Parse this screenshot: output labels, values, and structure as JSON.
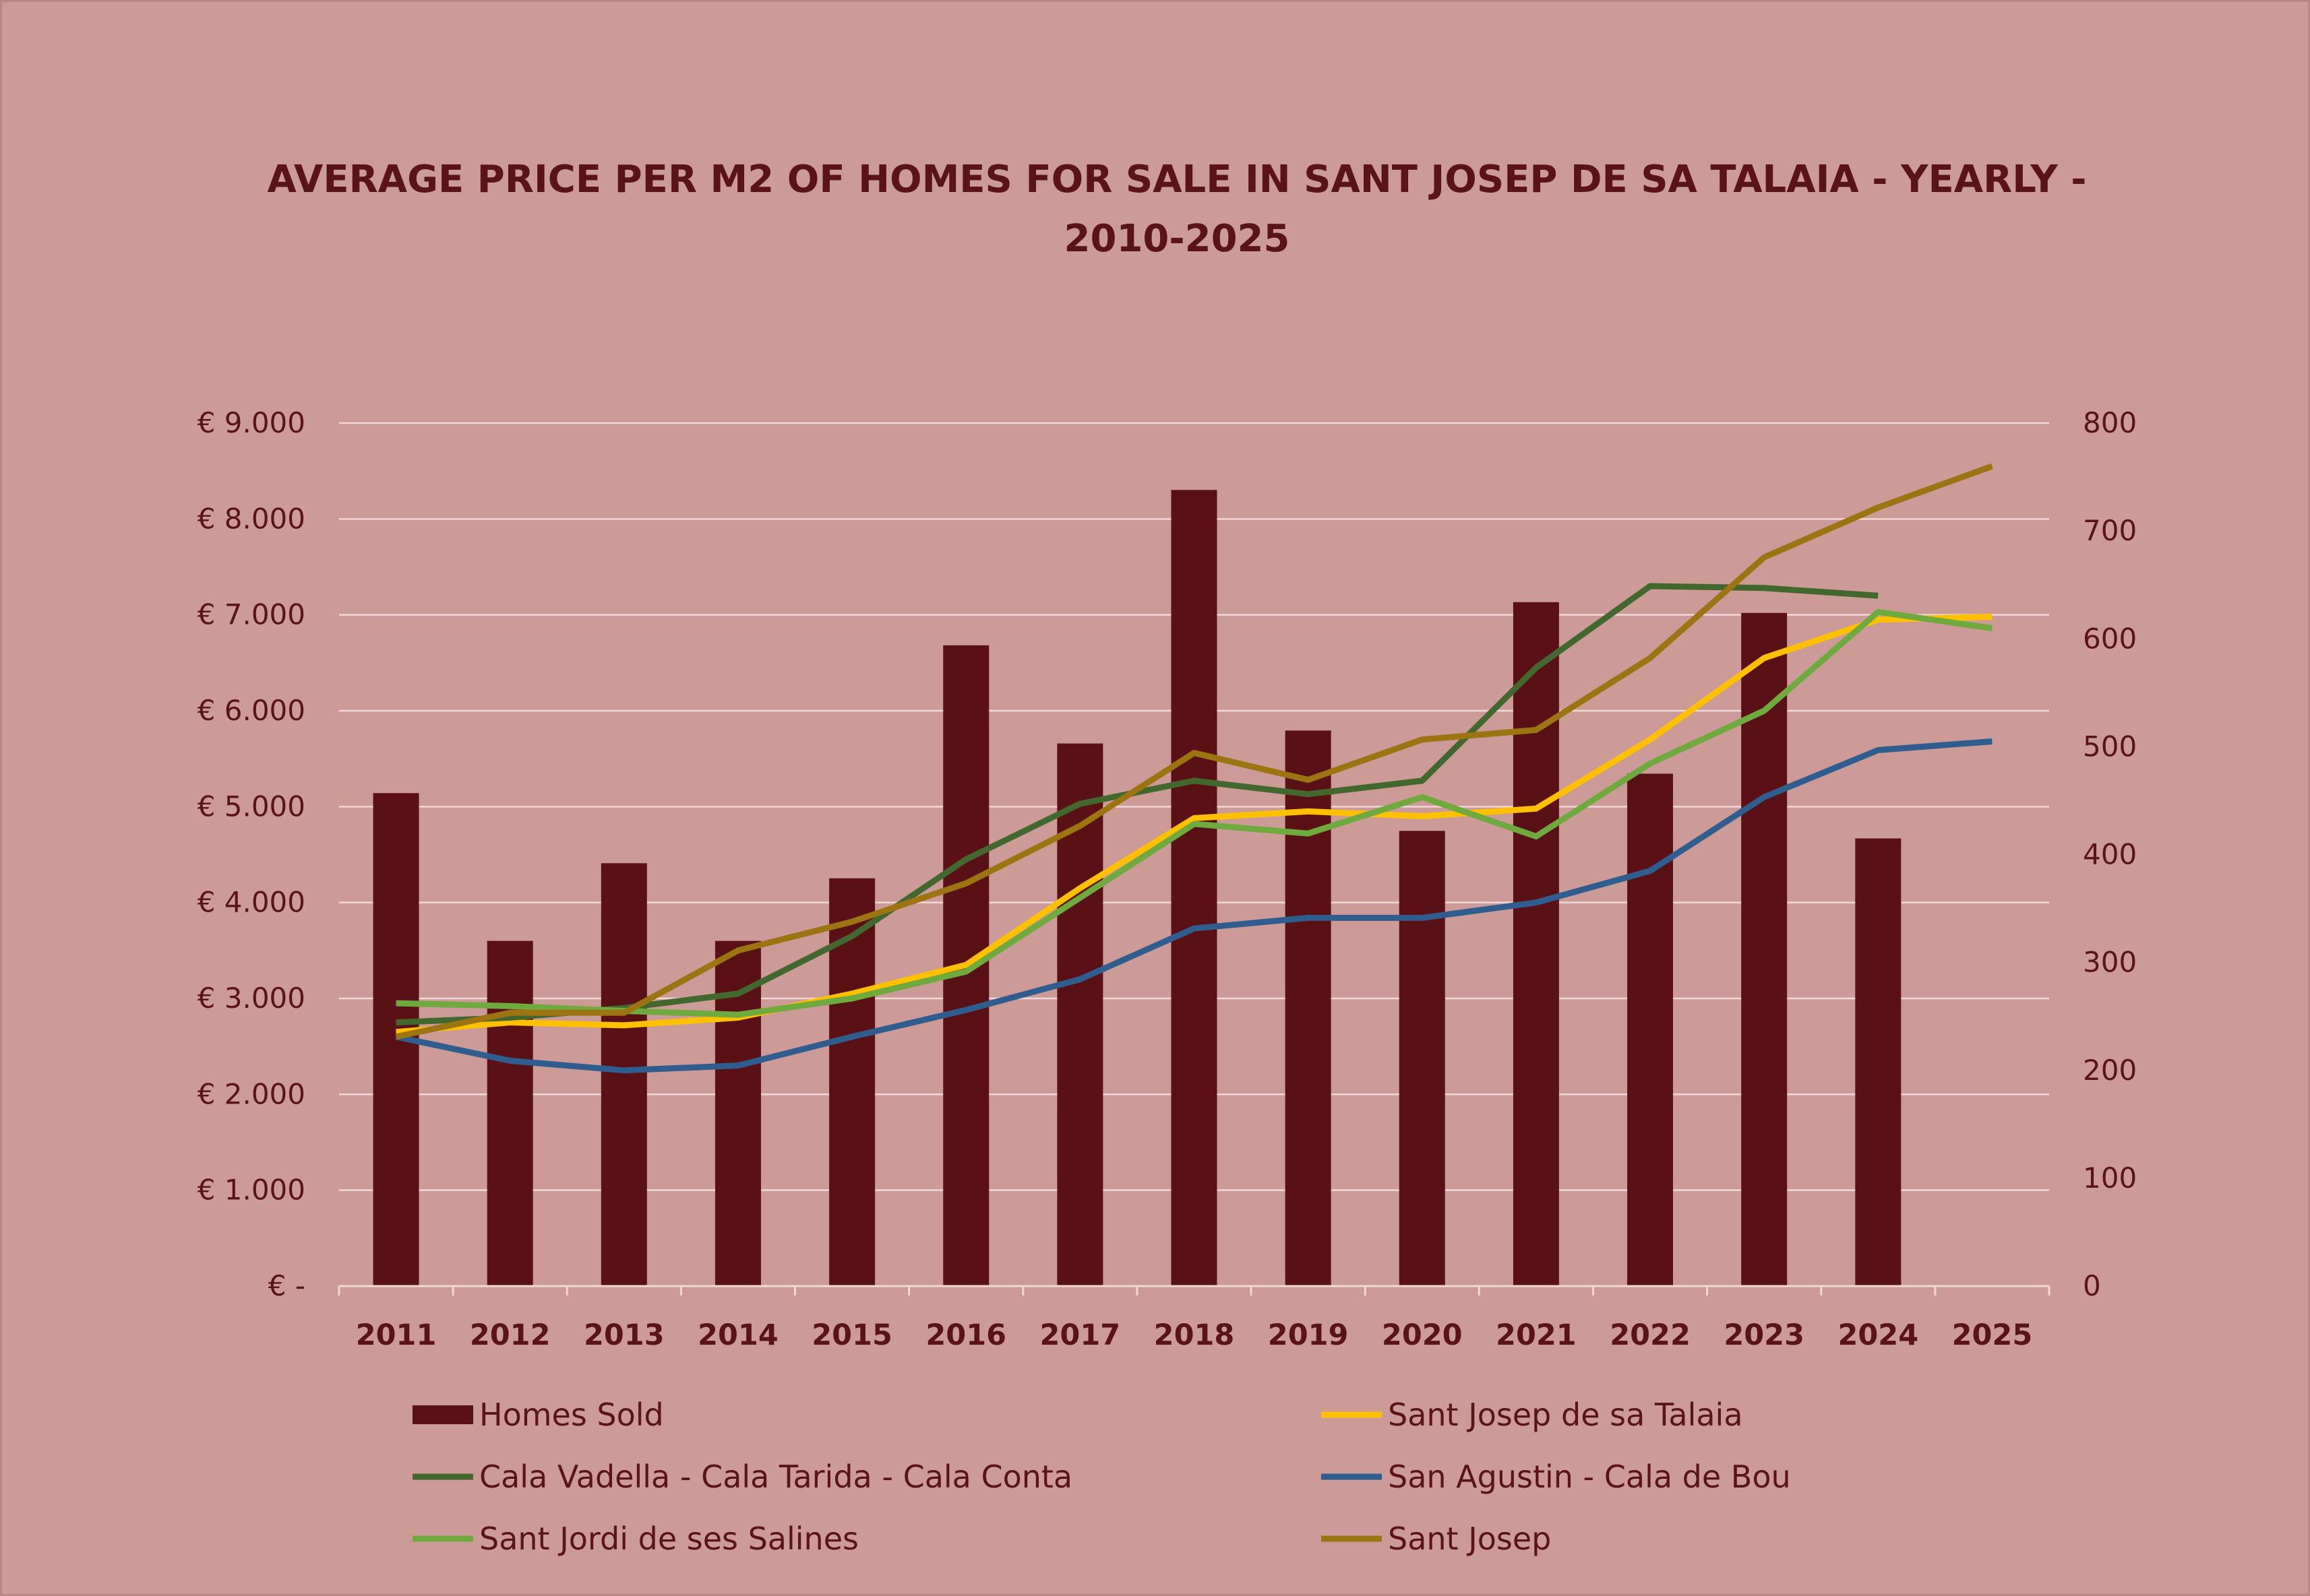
{
  "chart_data": {
    "type": "bar+line",
    "title_lines": [
      "AVERAGE PRICE PER M2 OF HOMES FOR SALE IN SANT JOSEP DE SA TALAIA - YEARLY -",
      "2010-2025"
    ],
    "categories": [
      "2011",
      "2012",
      "2013",
      "2014",
      "2015",
      "2016",
      "2017",
      "2018",
      "2019",
      "2020",
      "2021",
      "2022",
      "2023",
      "2024",
      "2025"
    ],
    "y_left": {
      "min": 0,
      "max": 9000,
      "ticks": [
        0,
        1000,
        2000,
        3000,
        4000,
        5000,
        6000,
        7000,
        8000,
        9000
      ],
      "tick_labels": [
        "€ -",
        "€ 1.000",
        "€ 2.000",
        "€ 3.000",
        "€ 4.000",
        "€ 5.000",
        "€ 6.000",
        "€ 7.000",
        "€ 8.000",
        "€ 9.000"
      ]
    },
    "y_right": {
      "min": 0,
      "max": 800,
      "ticks": [
        0,
        100,
        200,
        300,
        400,
        500,
        600,
        700,
        800
      ],
      "tick_labels": [
        "0",
        "100",
        "200",
        "300",
        "400",
        "500",
        "600",
        "700",
        "800"
      ]
    },
    "grid": true,
    "legend_position": "bottom",
    "bars": {
      "name": "Homes Sold",
      "axis": "right",
      "color": "#5a1115",
      "values": [
        457,
        320,
        392,
        320,
        378,
        594,
        503,
        738,
        515,
        422,
        634,
        475,
        624,
        415,
        null
      ]
    },
    "series": [
      {
        "name": "Sant Josep de sa Talaia",
        "color": "#ffc000",
        "values": [
          2650,
          2750,
          2720,
          2800,
          3050,
          3350,
          4150,
          4880,
          4950,
          4900,
          4980,
          5700,
          6550,
          6950,
          6980
        ]
      },
      {
        "name": "Cala Vadella - Cala Tarida - Cala Conta",
        "color": "#43682f",
        "values": [
          2750,
          2800,
          2900,
          3050,
          3650,
          4450,
          5030,
          5270,
          5130,
          5270,
          6450,
          7300,
          7280,
          7200,
          null
        ]
      },
      {
        "name": "San Agustin - Cala de Bou",
        "color": "#2e5d8e",
        "values": [
          2600,
          2350,
          2250,
          2300,
          2600,
          2880,
          3200,
          3730,
          3840,
          3840,
          4000,
          4330,
          5100,
          5590,
          5680
        ]
      },
      {
        "name": "Sant Jordi de ses Salines",
        "color": "#6faa3f",
        "values": [
          2950,
          2920,
          2870,
          2830,
          3000,
          3280,
          4050,
          4820,
          4720,
          5100,
          4690,
          5450,
          6000,
          7030,
          6860
        ]
      },
      {
        "name": "Sant Josep",
        "color": "#9c7412",
        "values": [
          2600,
          2850,
          2850,
          3500,
          3800,
          4200,
          4800,
          5560,
          5280,
          5700,
          5800,
          6550,
          7600,
          8120,
          8550
        ]
      }
    ],
    "legend": [
      {
        "name": "Homes Sold",
        "kind": "bar",
        "color": "#5a1115"
      },
      {
        "name": "Sant Josep de sa Talaia",
        "kind": "line",
        "color": "#ffc000"
      },
      {
        "name": "Cala Vadella - Cala Tarida - Cala Conta",
        "kind": "line",
        "color": "#43682f"
      },
      {
        "name": "San Agustin - Cala de Bou",
        "kind": "line",
        "color": "#2e5d8e"
      },
      {
        "name": "Sant Jordi de ses Salines",
        "kind": "line",
        "color": "#6faa3f"
      },
      {
        "name": "Sant Josep",
        "kind": "line",
        "color": "#9c7412"
      }
    ]
  }
}
